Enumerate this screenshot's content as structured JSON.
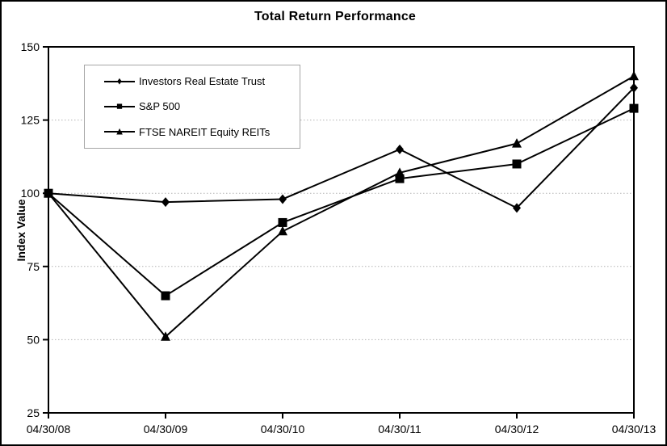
{
  "chart_data": {
    "type": "line",
    "title": "Total Return Performance",
    "xlabel": "",
    "ylabel": "Index Value",
    "categories": [
      "04/30/08",
      "04/30/09",
      "04/30/10",
      "04/30/11",
      "04/30/12",
      "04/30/13"
    ],
    "series": [
      {
        "name": "Investors Real Estate Trust",
        "marker": "diamond",
        "marker_glyph": "♦",
        "values": [
          100,
          97,
          98,
          115,
          95,
          136
        ]
      },
      {
        "name": "S&P 500",
        "marker": "square",
        "marker_glyph": "■",
        "values": [
          100,
          65,
          90,
          105,
          110,
          129
        ]
      },
      {
        "name": "FTSE NAREIT Equity REITs",
        "marker": "triangle",
        "marker_glyph": "▲",
        "values": [
          100,
          51,
          87,
          107,
          117,
          140
        ]
      }
    ],
    "ylim": [
      25,
      150
    ],
    "yticks": [
      25,
      50,
      75,
      100,
      125,
      150
    ],
    "gridlines": [
      50,
      75,
      100,
      125
    ],
    "grid_style": "dotted-horizontal",
    "legend_position": "top-left",
    "colors": {
      "line": "#000000",
      "grid": "#b3b3b3",
      "legend_border": "#a6a6a6",
      "background": "#ffffff",
      "text": "#000000"
    }
  }
}
